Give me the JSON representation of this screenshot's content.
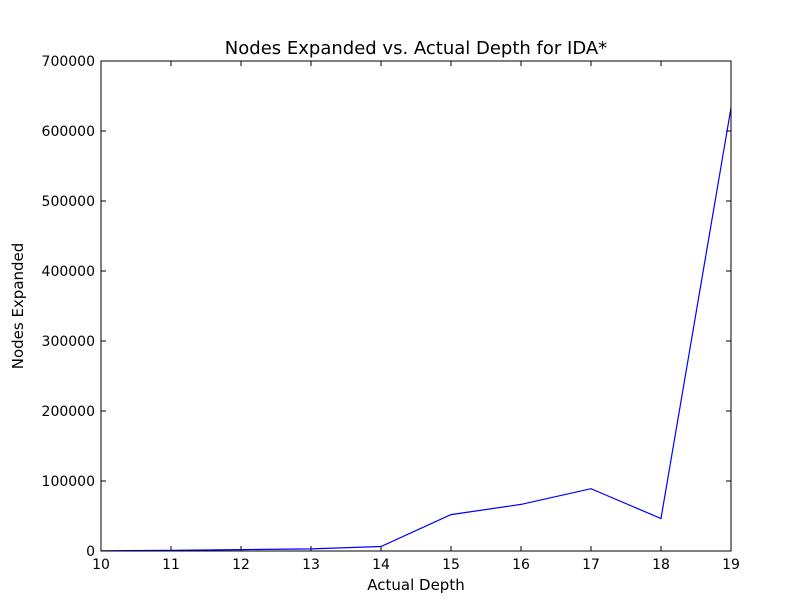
{
  "chart_data": {
    "type": "line",
    "title": "Nodes Expanded vs. Actual Depth for IDA*",
    "xlabel": "Actual Depth",
    "ylabel": "Nodes Expanded",
    "xlim": [
      10,
      19
    ],
    "ylim": [
      0,
      700000
    ],
    "xticks": [
      10,
      11,
      12,
      13,
      14,
      15,
      16,
      17,
      18,
      19
    ],
    "yticks": [
      0,
      100000,
      200000,
      300000,
      400000,
      500000,
      600000,
      700000
    ],
    "grid": false,
    "legend": "none",
    "series": [
      {
        "color": "#0000ff",
        "x": [
          10,
          11,
          12,
          13,
          14,
          15,
          16,
          17,
          18,
          19
        ],
        "y": [
          300,
          800,
          2000,
          3000,
          6500,
          52000,
          66500,
          89000,
          46500,
          633000
        ]
      }
    ]
  }
}
